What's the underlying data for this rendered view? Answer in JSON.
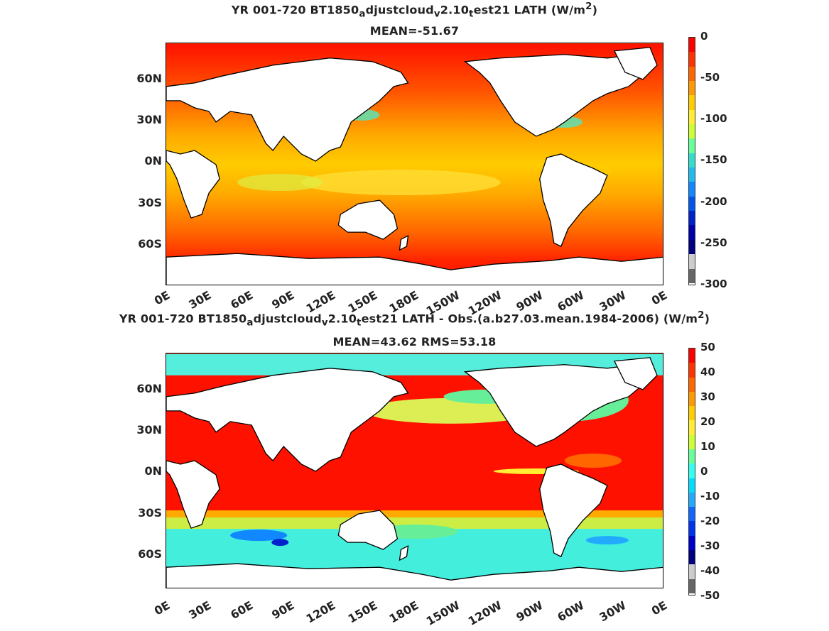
{
  "top": {
    "title_pre": "YR 001-720 BT1850",
    "title_sub1": "a",
    "title_mid1": "djustcloud",
    "title_sub2": "v",
    "title_mid2": "2.10",
    "title_sub3": "t",
    "title_post": "est21  LATH (W/m",
    "title_sup": "2",
    "title_close": ")",
    "subtitle": "MEAN=-51.67",
    "colorbar_labels": [
      "0",
      "-50",
      "-100",
      "-150",
      "-200",
      "-250",
      "-300"
    ],
    "colors": [
      "#ff0000",
      "#ff3300",
      "#ff6600",
      "#ff9900",
      "#ffcc00",
      "#ffee33",
      "#ccff33",
      "#66ff99",
      "#33ddcc",
      "#22bbee",
      "#1188ff",
      "#0055ee",
      "#0022cc",
      "#0000aa",
      "#000080",
      "#cccccc",
      "#666666"
    ]
  },
  "bottom": {
    "title_pre": "YR 001-720 BT1850",
    "title_sub1": "a",
    "title_mid1": "djustcloud",
    "title_sub2": "v",
    "title_mid2": "2.10",
    "title_sub3": "t",
    "title_post": "est21 LATH - Obs.(a.b27.03.mean.1984-2006) (W/m",
    "title_sup": "2",
    "title_close": ")",
    "subtitle": "MEAN=43.62 RMS=53.18",
    "colorbar_labels": [
      "50",
      "40",
      "30",
      "20",
      "10",
      "0",
      "-10",
      "-20",
      "-30",
      "-40",
      "-50"
    ],
    "colors": [
      "#ff0000",
      "#ff3300",
      "#ff6600",
      "#ff9900",
      "#ffcc00",
      "#ffee33",
      "#ccff33",
      "#66ff99",
      "#33ffee",
      "#00ddff",
      "#22aaff",
      "#1166ff",
      "#0033ee",
      "#0000cc",
      "#000080",
      "#cccccc",
      "#666666"
    ]
  },
  "lat_labels": [
    "60N",
    "30N",
    "0N",
    "30S",
    "60S"
  ],
  "lon_labels": [
    "0E",
    "30E",
    "60E",
    "90E",
    "120E",
    "150E",
    "180E",
    "150W",
    "120W",
    "90W",
    "60W",
    "30W",
    "0E"
  ]
}
